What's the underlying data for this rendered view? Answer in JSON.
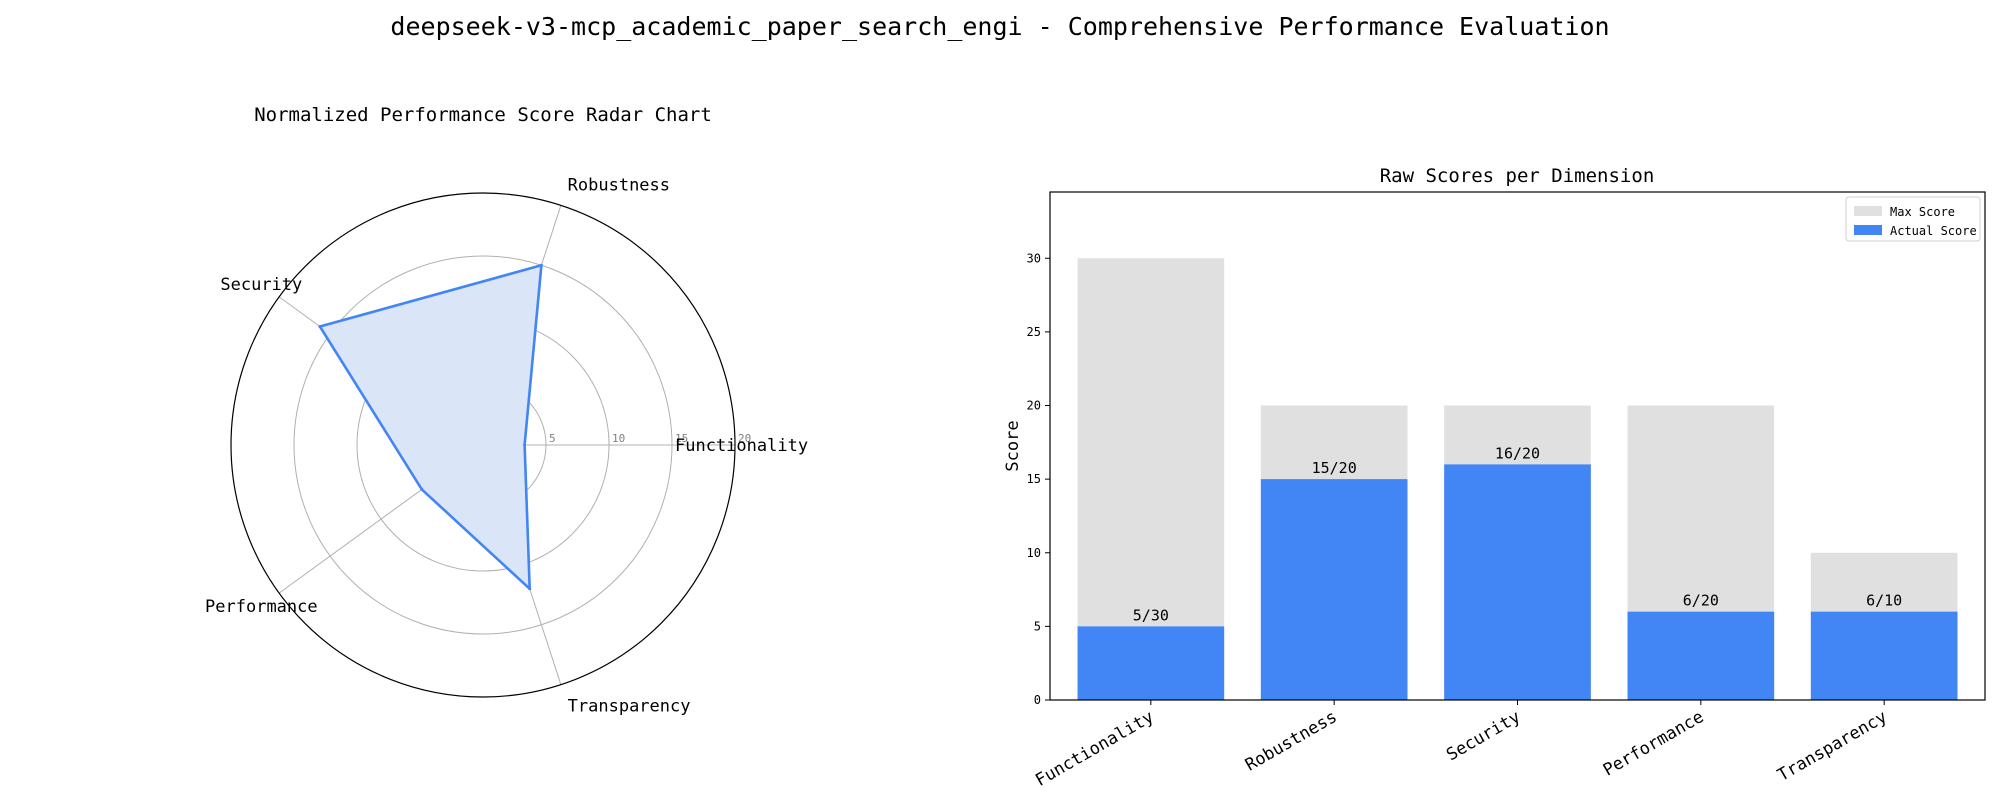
{
  "suptitle": "deepseek-v3-mcp_academic_paper_search_engi - Comprehensive Performance Evaluation",
  "colors": {
    "actual": "#4285f4",
    "max": "#e0e0e0",
    "radar_fill": "#dae5f8",
    "radar_line": "#4285f4",
    "grid": "#b0b0b0"
  },
  "chart_data": [
    {
      "type": "radar",
      "title": "Normalized Performance Score Radar Chart",
      "categories": [
        "Functionality",
        "Robustness",
        "Security",
        "Performance",
        "Transparency"
      ],
      "values": [
        3.3,
        15,
        16,
        6,
        12
      ],
      "rlim": [
        0,
        20
      ],
      "rticks": [
        "5",
        "10",
        "15",
        "20"
      ],
      "rtick_values": [
        5,
        10,
        15,
        20
      ],
      "grid": true
    },
    {
      "type": "bar",
      "title": "Raw Scores per Dimension",
      "categories": [
        "Functionality",
        "Robustness",
        "Security",
        "Performance",
        "Transparency"
      ],
      "ylabel": "Score",
      "ylim": [
        0,
        34.5
      ],
      "yticks": [
        "0",
        "5",
        "10",
        "15",
        "20",
        "25",
        "30"
      ],
      "ytick_values": [
        0,
        5,
        10,
        15,
        20,
        25,
        30
      ],
      "series": [
        {
          "name": "Max Score",
          "values": [
            30,
            20,
            20,
            20,
            10
          ]
        },
        {
          "name": "Actual Score",
          "values": [
            5,
            15,
            16,
            6,
            6
          ]
        }
      ],
      "value_labels": [
        "5/30",
        "15/20",
        "16/20",
        "6/20",
        "6/10"
      ],
      "legend_position": "upper right",
      "grid": false
    }
  ]
}
